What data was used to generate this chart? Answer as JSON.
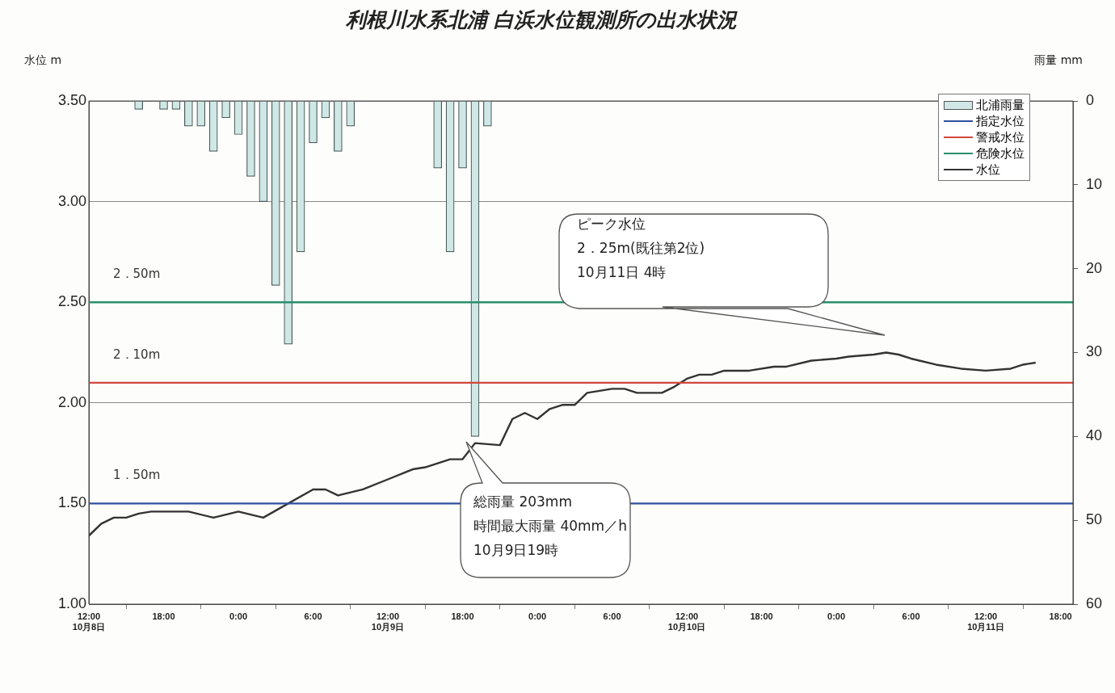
{
  "chart_data": {
    "type": "line",
    "title": "利根川水系北浦 白浜水位観測所の出水状況",
    "ylabel": "水位 m",
    "y2label": "雨量 mm",
    "xlim": [
      "--10-08T12:00",
      "--10-11T19:00"
    ],
    "xticks": [
      {
        "value": "--10-08T12:00",
        "label": "12:00\n10月8日"
      },
      {
        "value": "--10-08T18:00",
        "label": "18:00"
      },
      {
        "value": "--10-09T00:00",
        "label": "0:00"
      },
      {
        "value": "--10-09T06:00",
        "label": "6:00"
      },
      {
        "value": "--10-09T12:00",
        "label": "12:00\n10月9日"
      },
      {
        "value": "--10-09T18:00",
        "label": "18:00"
      },
      {
        "value": "--10-10T00:00",
        "label": "0:00"
      },
      {
        "value": "--10-10T06:00",
        "label": "6:00"
      },
      {
        "value": "--10-10T12:00",
        "label": "12:00\n10月10日"
      },
      {
        "value": "--10-10T18:00",
        "label": "18:00"
      },
      {
        "value": "--10-11T00:00",
        "label": "0:00"
      },
      {
        "value": "--10-11T06:00",
        "label": "6:00"
      },
      {
        "value": "--10-11T12:00",
        "label": "12:00\n10月11日"
      },
      {
        "value": "--10-11T18:00",
        "label": "18:00"
      }
    ],
    "ylim": [
      1,
      3.5
    ],
    "yticks": [
      {
        "value": 1,
        "label": "1.00"
      },
      {
        "value": 1.5,
        "label": "1.50"
      },
      {
        "value": 2,
        "label": "2.00"
      },
      {
        "value": 2.5,
        "label": "2.50"
      },
      {
        "value": 3,
        "label": "3.00"
      },
      {
        "value": 3.5,
        "label": "3.50"
      }
    ],
    "y2lim": [
      60,
      0
    ],
    "y2ticks": [
      0,
      10,
      20,
      30,
      40,
      50,
      60
    ],
    "grid": "y",
    "legend": "top right",
    "marker": "none",
    "line_style": "solid",
    "series": [
      {
        "name": "北浦雨量",
        "type": "bar",
        "axis": "y2",
        "color": "#cfe8e6",
        "x": [
          "--10-08T16:00",
          "--10-08T18:00",
          "--10-08T19:00",
          "--10-08T20:00",
          "--10-08T21:00",
          "--10-08T22:00",
          "--10-08T23:00",
          "--10-09T00:00",
          "--10-09T01:00",
          "--10-09T02:00",
          "--10-09T03:00",
          "--10-09T04:00",
          "--10-09T05:00",
          "--10-09T06:00",
          "--10-09T07:00",
          "--10-09T08:00",
          "--10-09T09:00",
          "--10-09T16:00",
          "--10-09T17:00",
          "--10-09T18:00",
          "--10-09T19:00",
          "--10-09T20:00"
        ],
        "values": [
          1,
          1,
          1,
          3,
          3,
          6,
          2,
          4,
          9,
          12,
          22,
          29,
          18,
          5,
          2,
          6,
          3,
          8,
          18,
          8,
          40,
          3
        ]
      },
      {
        "name": "指定水位",
        "color": "#2f4f9f",
        "x": [
          "--10-08T12:00",
          "--10-11T19:00"
        ],
        "values": [
          1.5,
          1.5
        ]
      },
      {
        "name": "警戒水位",
        "color": "#d2473f",
        "x": [
          "--10-08T12:00",
          "--10-11T19:00"
        ],
        "values": [
          2.1,
          2.1
        ]
      },
      {
        "name": "危険水位",
        "color": "#2a8f6c",
        "x": [
          "--10-08T12:00",
          "--10-11T19:00"
        ],
        "values": [
          2.5,
          2.5
        ]
      },
      {
        "name": "水位",
        "color": "#333333",
        "x": [
          "--10-08T12:00",
          "--10-08T13:00",
          "--10-08T14:00",
          "--10-08T15:00",
          "--10-08T16:00",
          "--10-08T17:00",
          "--10-08T20:00",
          "--10-08T22:00",
          "--10-09T00:00",
          "--10-09T02:00",
          "--10-09T04:00",
          "--10-09T06:00",
          "--10-09T07:00",
          "--10-09T08:00",
          "--10-09T10:00",
          "--10-09T12:00",
          "--10-09T14:00",
          "--10-09T15:00",
          "--10-09T17:00",
          "--10-09T18:00",
          "--10-09T19:00",
          "--10-09T21:00",
          "--10-09T22:00",
          "--10-09T23:00",
          "--10-10T00:00",
          "--10-10T01:00",
          "--10-10T02:00",
          "--10-10T03:00",
          "--10-10T04:00",
          "--10-10T06:00",
          "--10-10T07:00",
          "--10-10T08:00",
          "--10-10T10:00",
          "--10-10T11:00",
          "--10-10T12:00",
          "--10-10T13:00",
          "--10-10T14:00",
          "--10-10T15:00",
          "--10-10T17:00",
          "--10-10T19:00",
          "--10-10T20:00",
          "--10-10T22:00",
          "--10-11T00:00",
          "--10-11T01:00",
          "--10-11T03:00",
          "--10-11T04:00",
          "--10-11T05:00",
          "--10-11T06:00",
          "--10-11T08:00",
          "--10-11T10:00",
          "--10-11T12:00",
          "--10-11T14:00",
          "--10-11T15:00",
          "--10-11T16:00"
        ],
        "values": [
          1.34,
          1.4,
          1.43,
          1.43,
          1.45,
          1.46,
          1.46,
          1.43,
          1.46,
          1.43,
          1.5,
          1.57,
          1.57,
          1.54,
          1.57,
          1.62,
          1.67,
          1.68,
          1.72,
          1.72,
          1.8,
          1.79,
          1.92,
          1.95,
          1.92,
          1.97,
          1.99,
          1.99,
          2.05,
          2.07,
          2.07,
          2.05,
          2.05,
          2.08,
          2.12,
          2.14,
          2.14,
          2.16,
          2.16,
          2.18,
          2.18,
          2.21,
          2.22,
          2.23,
          2.24,
          2.25,
          2.24,
          2.22,
          2.19,
          2.17,
          2.16,
          2.17,
          2.19,
          2.2
        ]
      }
    ],
    "annotations": [
      {
        "text": "2．50m",
        "y": 2.5
      },
      {
        "text": "2．10m",
        "y": 2.1
      },
      {
        "text": "1．50m",
        "y": 1.5
      },
      "ピーク水位\n2．25m(既往第2位)\n10月11日 4時",
      "総雨量 203mm\n時間最大雨量 40mm／h\n10月9日19時"
    ]
  }
}
